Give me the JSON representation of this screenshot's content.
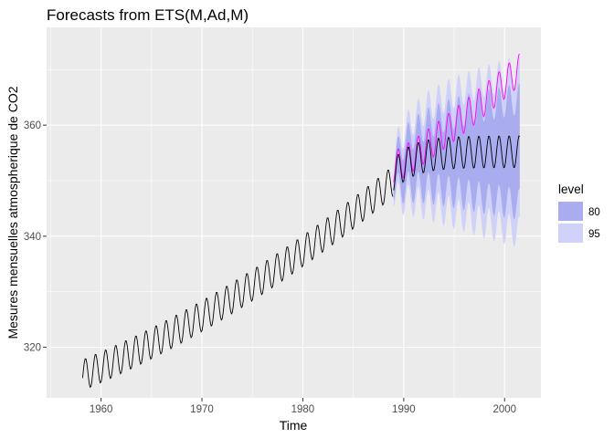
{
  "chart_data": {
    "type": "line",
    "title": "Forecasts from ETS(M,Ad,M)",
    "xlabel": "Time",
    "ylabel": "Mesures mensuelles atmospherique de CO2",
    "xlim": [
      1954.6,
      2003.6
    ],
    "ylim": [
      310.9,
      377.6
    ],
    "x_ticks": [
      1960,
      1970,
      1980,
      1990,
      2000
    ],
    "y_ticks": [
      320,
      340,
      360
    ],
    "grid": true,
    "legend": {
      "title": "level",
      "position": "right",
      "entries": [
        {
          "label": "80",
          "color": "#a9acee"
        },
        {
          "label": "95",
          "color": "#cfd1f8"
        }
      ]
    },
    "historical": {
      "start": 1958.17,
      "end": 1988.92,
      "monthly": true,
      "trend_quadratic": [
        315.0,
        0.75,
        0.0125
      ],
      "seasonal_amplitude": 2.8,
      "seasonal_phase": 0.2,
      "color": "#000000"
    },
    "forecast": {
      "start": 1989.0,
      "end": 2001.5,
      "monthly": true,
      "point_trend": [
        351.0,
        355.2,
        1.6
      ],
      "seasonal_amplitude": 2.9,
      "seasonal_phase": 0.2,
      "band80_halfwidth": [
        1.8,
        9.5
      ],
      "band95_halfwidth": [
        2.7,
        14.5
      ],
      "color": "#000000",
      "band80_color": "#a9acee",
      "band95_color": "#cfd1f8"
    },
    "actual": {
      "start": 1989.0,
      "end": 2001.5,
      "monthly": true,
      "start_level": 352.5,
      "end_level": 370.0,
      "seasonal_amplitude": 2.9,
      "seasonal_phase": 0.2,
      "color": "#ff00ff"
    }
  }
}
